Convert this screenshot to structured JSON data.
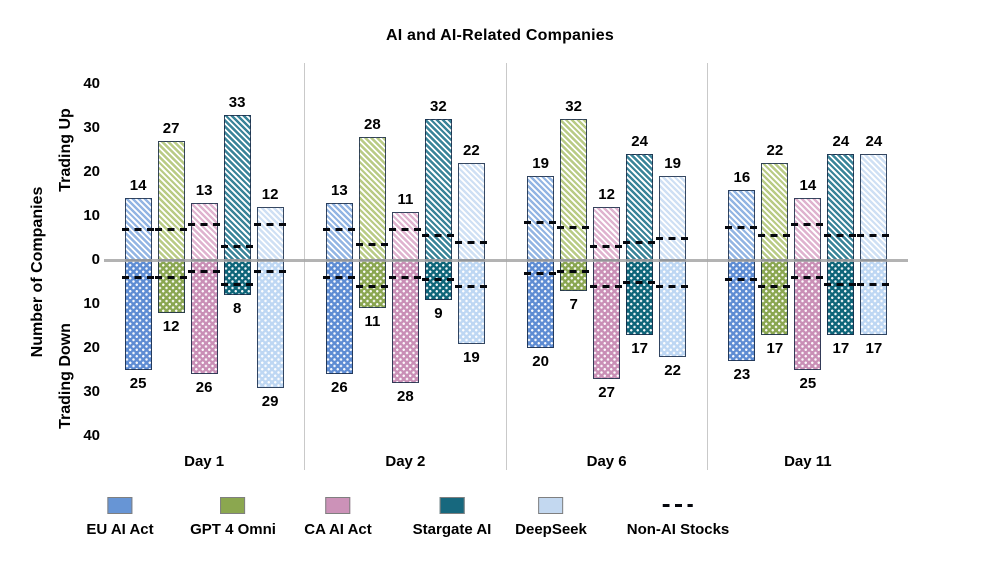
{
  "chart_data": {
    "type": "bar",
    "title": "AI and AI-Related Companies",
    "y_axis": {
      "label": "Number of Companies",
      "up_label": "Trading Up",
      "down_label": "Trading Down",
      "tick_values": [
        40,
        30,
        20,
        10,
        0,
        -10,
        -20,
        -30,
        -40
      ],
      "tick_labels": [
        "40",
        "30",
        "20",
        "10",
        "0",
        "10",
        "20",
        "30",
        "40"
      ],
      "ylim": [
        -40,
        40
      ],
      "grid": false
    },
    "categories": [
      "Day 1",
      "Day 2",
      "Day 6",
      "Day 11"
    ],
    "series": [
      {
        "name": "EU AI Act",
        "legend_color": "#6795D5",
        "hatch_color": "#93B5E3",
        "dot_color": "#5E8CD3"
      },
      {
        "name": "GPT 4 Omni",
        "legend_color": "#8BA74F",
        "hatch_color": "#B9CB85",
        "dot_color": "#8AA651"
      },
      {
        "name": "CA AI Act",
        "legend_color": "#CC92B8",
        "hatch_color": "#DFB3CF",
        "dot_color": "#C98FB6"
      },
      {
        "name": "Stargate AI",
        "legend_color": "#17687E",
        "hatch_color": "#3A8499",
        "dot_color": "#0E6579"
      },
      {
        "name": "DeepSeek",
        "legend_color": "#C3D8F0",
        "hatch_color": "#CFE0F4",
        "dot_color": "#BED7F3"
      }
    ],
    "non_ai_legend_label": "Non-AI Stocks",
    "groups": [
      {
        "label": "Day 1",
        "trading_up": [
          14,
          27,
          13,
          33,
          12
        ],
        "trading_down": [
          25,
          12,
          26,
          8,
          29
        ],
        "non_ai_up": [
          7,
          7,
          8,
          3,
          8
        ],
        "non_ai_down": [
          4,
          4,
          2.5,
          5.5,
          2.5
        ]
      },
      {
        "label": "Day 2",
        "trading_up": [
          13,
          28,
          11,
          32,
          22
        ],
        "trading_down": [
          26,
          11,
          28,
          9,
          19
        ],
        "non_ai_up": [
          7,
          3.5,
          7,
          5.5,
          4
        ],
        "non_ai_down": [
          4,
          6,
          4,
          4.5,
          6
        ]
      },
      {
        "label": "Day 6",
        "trading_up": [
          19,
          32,
          12,
          24,
          19
        ],
        "trading_down": [
          20,
          7,
          27,
          17,
          22
        ],
        "non_ai_up": [
          8.5,
          7.5,
          3,
          4,
          5
        ],
        "non_ai_down": [
          3,
          2.5,
          6,
          5,
          6
        ]
      },
      {
        "label": "Day 11",
        "trading_up": [
          16,
          22,
          14,
          24,
          24
        ],
        "trading_down": [
          23,
          17,
          25,
          17,
          17
        ],
        "non_ai_up": [
          7.5,
          5.5,
          8,
          5.5,
          5.5
        ],
        "non_ai_down": [
          4.5,
          6,
          4,
          5.5,
          5.5
        ]
      }
    ],
    "colors": {
      "zero_line": "#A6A6A6",
      "group_separator": "#C9C9C9",
      "non_ai_dash": "#05070D",
      "bar_border": "#172A46",
      "text": "#000000"
    },
    "legend_position": "bottom"
  }
}
